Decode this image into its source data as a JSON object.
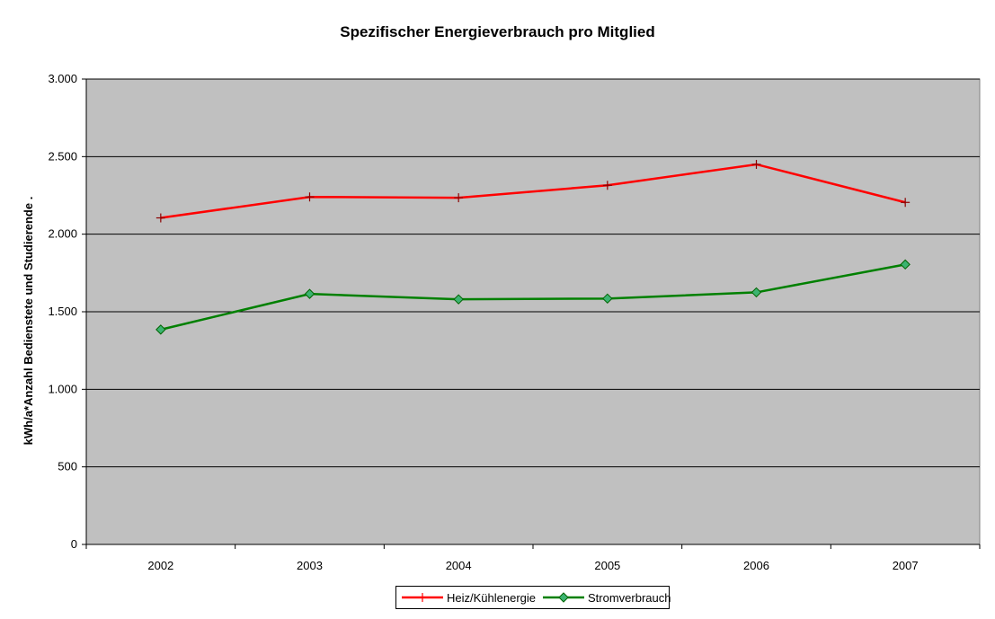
{
  "chart_data": {
    "type": "line",
    "title": "Spezifischer Energieverbrauch pro Mitglied",
    "xlabel": "",
    "ylabel": "kWh/a*Anzahl Bedienstete und Studierende .",
    "categories": [
      "2002",
      "2003",
      "2004",
      "2005",
      "2006",
      "2007"
    ],
    "ylim": [
      0,
      3000
    ],
    "yticks": [
      0,
      500,
      1000,
      1500,
      2000,
      2500,
      3000
    ],
    "ytick_labels": [
      "0",
      "500",
      "1.000",
      "1.500",
      "2.000",
      "2.500",
      "3.000"
    ],
    "grid": true,
    "legend_position": "bottom",
    "plot_background": "#c0c0c0",
    "series": [
      {
        "name": "Heiz/Kühlenergie",
        "color": "#ff0000",
        "marker": "plus",
        "values": [
          2105,
          2240,
          2235,
          2315,
          2450,
          2205
        ]
      },
      {
        "name": "Stromverbrauch",
        "color": "#008000",
        "marker": "diamond",
        "values": [
          1385,
          1615,
          1580,
          1585,
          1625,
          1805
        ]
      }
    ]
  }
}
